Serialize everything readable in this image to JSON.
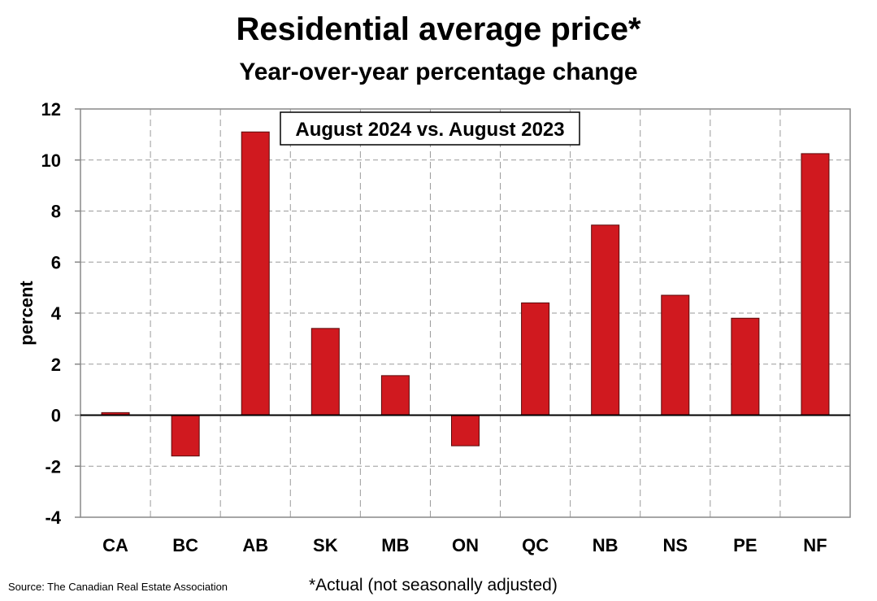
{
  "chart_data": {
    "type": "bar",
    "title": "Residential average price*",
    "subtitle": "Year-over-year percentage change",
    "annotation": "August 2024 vs. August 2023",
    "ylabel": "percent",
    "xlabel": "",
    "ylim": [
      -4,
      12
    ],
    "yticks": [
      -4,
      -2,
      0,
      2,
      4,
      6,
      8,
      10,
      12
    ],
    "categories": [
      "CA",
      "BC",
      "AB",
      "SK",
      "MB",
      "ON",
      "QC",
      "NB",
      "NS",
      "PE",
      "NF"
    ],
    "values": [
      0.1,
      -1.6,
      11.1,
      3.4,
      1.55,
      -1.2,
      4.4,
      7.45,
      4.7,
      3.8,
      10.25
    ],
    "bar_color": "#d0191f",
    "grid": true,
    "footnote": "*Actual (not seasonally adjusted)",
    "source": "Source: The Canadian Real Estate Association"
  }
}
